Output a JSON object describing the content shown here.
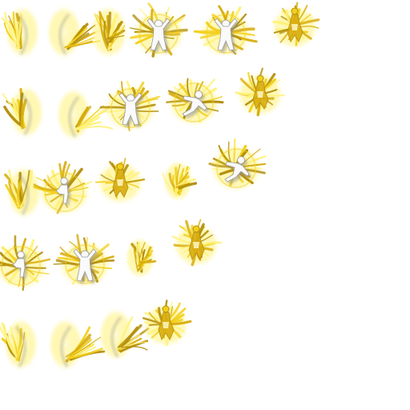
{
  "sprite_sheet": {
    "background_color": "#ffffff",
    "palette": {
      "glow": "#fff27a",
      "glow_bright": "#fffbd0",
      "gold": "#f2cf1c",
      "gold_mid": "#d9ad10",
      "gold_dark": "#b48e0a",
      "body_light": "#fafafa",
      "body_shadow": "#9c9c9c",
      "shadow": "#8a8a8a"
    },
    "rows": [
      {
        "frames": [
          {
            "pose": "wing-left",
            "seed": 11
          },
          {
            "pose": "wing-right",
            "seed": 12
          },
          {
            "pose": "wings-folded",
            "seed": 13
          },
          {
            "pose": "figure-arms-up",
            "seed": 14
          },
          {
            "pose": "figure-arms-up",
            "seed": 15
          },
          {
            "pose": "gold-burst",
            "seed": 16
          }
        ]
      },
      {
        "frames": [
          {
            "pose": "wing-left",
            "seed": 21
          },
          {
            "pose": "wing-right",
            "seed": 22
          },
          {
            "pose": "figure-arms-up",
            "seed": 23
          },
          {
            "pose": "figure-leap",
            "seed": 24
          },
          {
            "pose": "gold-burst",
            "seed": 25
          }
        ]
      },
      {
        "frames": [
          {
            "pose": "wing-left",
            "seed": 31
          },
          {
            "pose": "figure-side",
            "seed": 32
          },
          {
            "pose": "gold-burst",
            "seed": 33
          },
          {
            "pose": "wing-small",
            "seed": 34
          },
          {
            "pose": "figure-leap",
            "seed": 35
          }
        ]
      },
      {
        "frames": [
          {
            "pose": "figure-side",
            "seed": 41
          },
          {
            "pose": "figure-arms-up",
            "seed": 42
          },
          {
            "pose": "wing-small",
            "seed": 43
          },
          {
            "pose": "gold-burst",
            "seed": 44
          }
        ]
      },
      {
        "frames": [
          {
            "pose": "wing-left",
            "seed": 51
          },
          {
            "pose": "wing-right",
            "seed": 52
          },
          {
            "pose": "wing-right",
            "seed": 53
          },
          {
            "pose": "gold-burst",
            "seed": 54
          }
        ]
      }
    ]
  }
}
